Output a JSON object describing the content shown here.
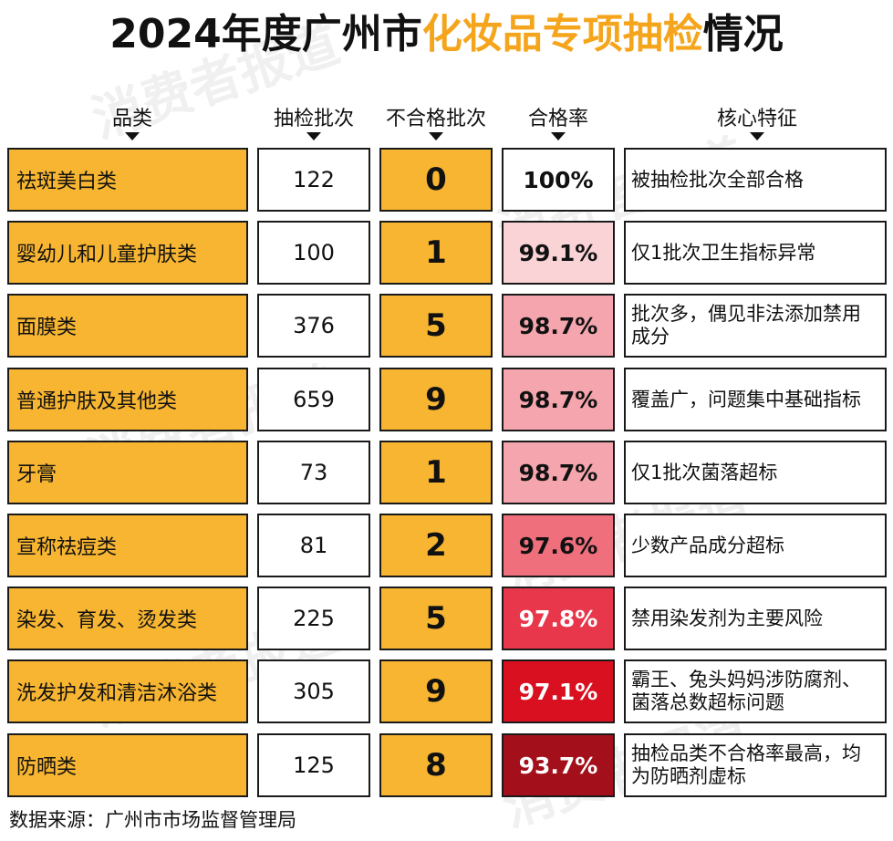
{
  "title": {
    "year": "2024年度广州市",
    "highlight": "化妆品专项抽检",
    "suffix": "情况"
  },
  "headers": [
    "品类",
    "抽检批次",
    "不合格批次",
    "合格率",
    "核心特征"
  ],
  "watermark": "消费者报道",
  "source": "数据来源：广州市市场监督管理局",
  "colors": {
    "accent": "#f7b531",
    "title_highlight": "#f5a51c",
    "rate_scale": [
      "#ffffff",
      "#f9d3d6",
      "#f4a5ad",
      "#ef7a85",
      "#e8364a",
      "#d9101f",
      "#a3101b"
    ]
  },
  "chart_data": {
    "type": "table",
    "columns": [
      "品类",
      "抽检批次",
      "不合格批次",
      "合格率",
      "核心特征"
    ],
    "rows": [
      {
        "category": "祛斑美白类",
        "batches": 122,
        "failed": 0,
        "rate": "100%",
        "rate_value": 100,
        "feature": "被抽检批次全部合格"
      },
      {
        "category": "婴幼儿和儿童护肤类",
        "batches": 100,
        "failed": 1,
        "rate": "99.1%",
        "rate_value": 99.1,
        "feature": "仅1批次卫生指标异常"
      },
      {
        "category": "面膜类",
        "batches": 376,
        "failed": 5,
        "rate": "98.7%",
        "rate_value": 98.7,
        "feature": "批次多，偶见非法添加禁用成分"
      },
      {
        "category": "普通护肤及其他类",
        "batches": 659,
        "failed": 9,
        "rate": "98.7%",
        "rate_value": 98.7,
        "feature": "覆盖广，问题集中基础指标"
      },
      {
        "category": "牙膏",
        "batches": 73,
        "failed": 1,
        "rate": "98.7%",
        "rate_value": 98.7,
        "feature": "仅1批次菌落超标"
      },
      {
        "category": "宣称祛痘类",
        "batches": 81,
        "failed": 2,
        "rate": "97.6%",
        "rate_value": 97.6,
        "feature": "少数产品成分超标"
      },
      {
        "category": "染发、育发、烫发类",
        "batches": 225,
        "failed": 5,
        "rate": "97.8%",
        "rate_value": 97.8,
        "feature": "禁用染发剂为主要风险"
      },
      {
        "category": "洗发护发和清洁沐浴类",
        "batches": 305,
        "failed": 9,
        "rate": "97.1%",
        "rate_value": 97.1,
        "feature": "霸王、兔头妈妈涉防腐剂、菌落总数超标问题"
      },
      {
        "category": "防晒类",
        "batches": 125,
        "failed": 8,
        "rate": "93.7%",
        "rate_value": 93.7,
        "feature": "抽检品类不合格率最高，均为防晒剂虚标"
      }
    ],
    "rate_colors": [
      "#ffffff",
      "#f9d3d6",
      "#f4a5ad",
      "#f4a5ad",
      "#f4a5ad",
      "#ef6f7c",
      "#e8364a",
      "#d9101f",
      "#a3101b"
    ],
    "rate_text_colors": [
      "#111111",
      "#111111",
      "#111111",
      "#111111",
      "#111111",
      "#111111",
      "#ffffff",
      "#ffffff",
      "#ffffff"
    ]
  }
}
